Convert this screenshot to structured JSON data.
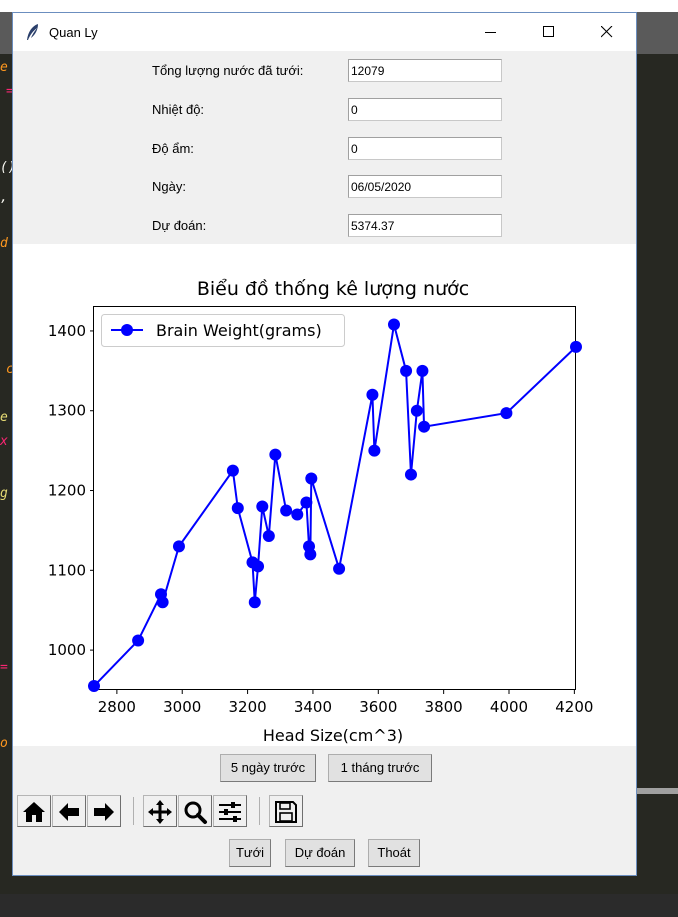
{
  "window": {
    "title": "Quan Ly"
  },
  "form": {
    "fields": [
      {
        "label": "Tổng lượng nước đã tưới:",
        "value": "12079"
      },
      {
        "label": "Nhiệt độ:",
        "value": "0"
      },
      {
        "label": "Độ ẩm:",
        "value": "0"
      },
      {
        "label": "Ngày:",
        "value": "06/05/2020"
      },
      {
        "label": "Dự đoán:",
        "value": "5374.37"
      }
    ]
  },
  "range_buttons": {
    "five_days": "5 ngày trước",
    "one_month": "1 tháng trước"
  },
  "toolbar": {
    "icons": [
      "home-icon",
      "back-arrow-icon",
      "forward-arrow-icon",
      "pan-icon",
      "zoom-icon",
      "configure-icon",
      "save-icon"
    ]
  },
  "actions": {
    "water": "Tưới",
    "predict": "Dự đoán",
    "quit": "Thoát"
  },
  "colors": {
    "series": "#0000ff",
    "window_bg": "#f0f0f0",
    "plot_bg": "#ffffff"
  },
  "chart_data": {
    "type": "line",
    "title": "Biểu đồ thống kê lượng nước",
    "xlabel": "Head Size(cm^3)",
    "ylabel": "",
    "xlim": [
      2730,
      4205
    ],
    "ylim": [
      950,
      1430
    ],
    "xticks": [
      2800,
      3000,
      3200,
      3400,
      3600,
      3800,
      4000,
      4200
    ],
    "yticks": [
      1000,
      1100,
      1200,
      1300,
      1400
    ],
    "grid": false,
    "legend": "top-left",
    "series": [
      {
        "name": "Brain Weight(grams)",
        "marker": "circle",
        "x": [
          2730,
          2865,
          2935,
          2940,
          2990,
          3155,
          3170,
          3215,
          3222,
          3232,
          3245,
          3265,
          3285,
          3318,
          3352,
          3380,
          3388,
          3392,
          3395,
          3480,
          3582,
          3588,
          3648,
          3685,
          3700,
          3718,
          3735,
          3740,
          3992,
          4205
        ],
        "y": [
          955,
          1012,
          1070,
          1060,
          1130,
          1225,
          1178,
          1110,
          1060,
          1105,
          1180,
          1143,
          1245,
          1175,
          1170,
          1185,
          1130,
          1120,
          1215,
          1102,
          1320,
          1250,
          1408,
          1350,
          1220,
          1300,
          1350,
          1280,
          1297,
          1380
        ]
      }
    ]
  }
}
